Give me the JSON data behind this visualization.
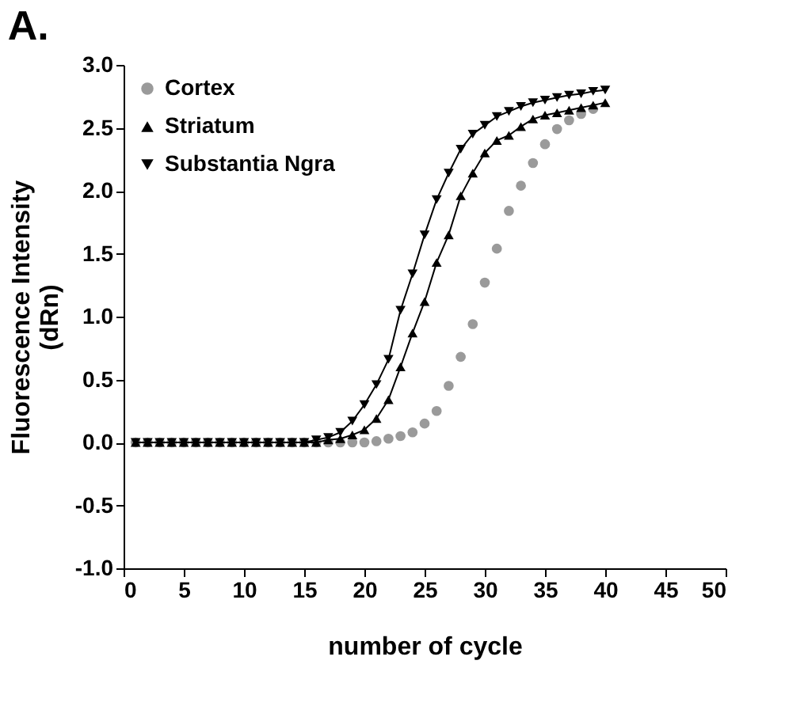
{
  "chart_data": {
    "type": "line",
    "title": "A.",
    "xlabel": "number of cycle",
    "ylabel": "Fluorescence Intensity\n(dRn)",
    "xlim": [
      0,
      50
    ],
    "xticks": [
      0,
      5,
      10,
      15,
      20,
      25,
      30,
      35,
      40,
      45,
      50
    ],
    "ylim": [
      -1,
      3
    ],
    "yticks": [
      {
        "value": -1,
        "label": "-1.0"
      },
      -0.5,
      {
        "value": 0,
        "label": "0.0"
      },
      0.5,
      {
        "value": 1,
        "label": "1.0"
      },
      1.5,
      {
        "value": 2,
        "label": "2.0"
      },
      2.5,
      {
        "value": 3,
        "label": "3.0"
      }
    ],
    "grid": false,
    "legend": "top left",
    "line_style": "solid",
    "series": [
      {
        "name": "Cortex",
        "type": "scatter",
        "marker": "circle",
        "color": "#9a9a9a",
        "x": [
          1,
          2,
          3,
          4,
          5,
          6,
          7,
          8,
          9,
          10,
          11,
          12,
          13,
          14,
          15,
          16,
          17,
          18,
          19,
          20,
          21,
          22,
          23,
          24,
          25,
          26,
          27,
          28,
          29,
          30,
          31,
          32,
          33,
          34,
          35,
          36,
          37,
          38,
          39
        ],
        "values": [
          0,
          0,
          0,
          0,
          0,
          0,
          0,
          0,
          0,
          0,
          0,
          0,
          0,
          0,
          0,
          0,
          0,
          0,
          0,
          0,
          0.01,
          0.03,
          0.05,
          0.08,
          0.15,
          0.25,
          0.45,
          0.68,
          0.94,
          1.27,
          1.54,
          1.84,
          2.04,
          2.22,
          2.37,
          2.49,
          2.56,
          2.61,
          2.65
        ]
      },
      {
        "name": "Striatum",
        "marker": "triangle",
        "color": "#000000",
        "x": [
          1,
          2,
          3,
          4,
          5,
          6,
          7,
          8,
          9,
          10,
          11,
          12,
          13,
          14,
          15,
          16,
          17,
          18,
          19,
          20,
          21,
          22,
          23,
          24,
          25,
          26,
          27,
          28,
          29,
          30,
          31,
          32,
          33,
          34,
          35,
          36,
          37,
          38,
          39,
          40
        ],
        "values": [
          0,
          0,
          0,
          0,
          0,
          0,
          0,
          0,
          0,
          0,
          0,
          0,
          0,
          0,
          0,
          0,
          0.02,
          0.03,
          0.06,
          0.1,
          0.19,
          0.34,
          0.6,
          0.87,
          1.12,
          1.43,
          1.65,
          1.96,
          2.14,
          2.3,
          2.4,
          2.44,
          2.51,
          2.57,
          2.6,
          2.62,
          2.64,
          2.66,
          2.68,
          2.7
        ]
      },
      {
        "name": "Substantia Ngra",
        "marker": "triangle-down",
        "color": "#000000",
        "x": [
          1,
          2,
          3,
          4,
          5,
          6,
          7,
          8,
          9,
          10,
          11,
          12,
          13,
          14,
          15,
          16,
          17,
          18,
          19,
          20,
          21,
          22,
          23,
          24,
          25,
          26,
          27,
          28,
          29,
          30,
          31,
          32,
          33,
          34,
          35,
          36,
          37,
          38,
          39,
          40
        ],
        "values": [
          0,
          0,
          0,
          0,
          0,
          0,
          0,
          0,
          0,
          0,
          0,
          0,
          0,
          0,
          0,
          0.02,
          0.04,
          0.08,
          0.17,
          0.3,
          0.46,
          0.66,
          1.05,
          1.34,
          1.65,
          1.93,
          2.14,
          2.33,
          2.45,
          2.52,
          2.59,
          2.63,
          2.67,
          2.7,
          2.72,
          2.74,
          2.76,
          2.77,
          2.79,
          2.8
        ]
      }
    ]
  }
}
